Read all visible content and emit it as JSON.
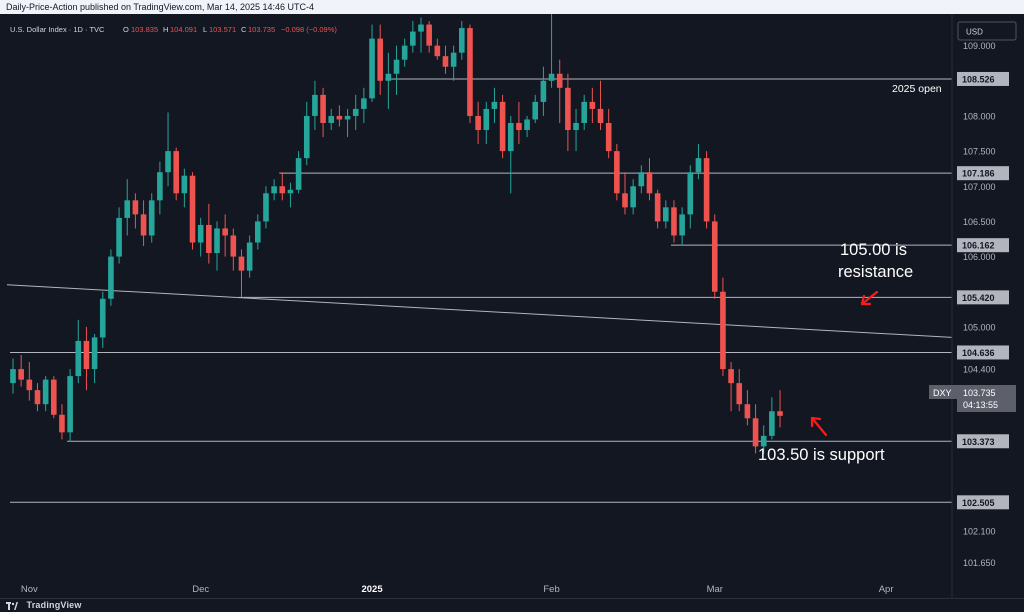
{
  "header": {
    "publish_line": "Daily-Price-Action published on TradingView.com, Mar 14, 2025 14:46 UTC-4"
  },
  "legend": {
    "symbol": "U.S. Dollar Index · 1D · TVC",
    "open_label": "O",
    "open": "103.835",
    "high_label": "H",
    "high": "104.091",
    "low_label": "L",
    "low": "103.571",
    "close_label": "C",
    "close": "103.735",
    "change": "−0.098 (−0.09%)"
  },
  "currency_badge": "USD",
  "footer": {
    "brand": "TradingView"
  },
  "chart_data": {
    "type": "candlestick",
    "symbol": "DXY",
    "timeframe": "1D",
    "y_range": [
      101.4,
      109.45
    ],
    "x_tick_labels": [
      {
        "label": "Nov",
        "bar": 2
      },
      {
        "label": "Dec",
        "bar": 23
      },
      {
        "label": "2025",
        "bar": 44
      },
      {
        "label": "Feb",
        "bar": 66
      },
      {
        "label": "Mar",
        "bar": 86
      },
      {
        "label": "Apr",
        "bar": 107
      }
    ],
    "y_tick_labels": [
      "109.000",
      "108.500",
      "108.000",
      "107.500",
      "107.000",
      "106.500",
      "106.000",
      "105.000",
      "104.400",
      "102.100",
      "101.650"
    ],
    "candles": [
      [
        104.2,
        104.55,
        104.05,
        104.4
      ],
      [
        104.4,
        104.6,
        104.15,
        104.25
      ],
      [
        104.25,
        104.5,
        103.95,
        104.1
      ],
      [
        104.1,
        104.2,
        103.8,
        103.9
      ],
      [
        103.9,
        104.3,
        103.8,
        104.25
      ],
      [
        104.25,
        104.3,
        103.7,
        103.75
      ],
      [
        103.75,
        103.9,
        103.4,
        103.5
      ],
      [
        103.5,
        104.4,
        103.37,
        104.3
      ],
      [
        104.3,
        105.1,
        104.2,
        104.8
      ],
      [
        104.8,
        105.0,
        104.1,
        104.4
      ],
      [
        104.4,
        104.9,
        104.2,
        104.85
      ],
      [
        104.85,
        105.5,
        104.7,
        105.4
      ],
      [
        105.4,
        106.1,
        105.3,
        106.0
      ],
      [
        106.0,
        106.7,
        105.9,
        106.55
      ],
      [
        106.55,
        107.1,
        106.3,
        106.8
      ],
      [
        106.8,
        106.9,
        106.4,
        106.6
      ],
      [
        106.6,
        106.8,
        106.15,
        106.3
      ],
      [
        106.3,
        106.9,
        106.2,
        106.8
      ],
      [
        106.8,
        107.35,
        106.6,
        107.2
      ],
      [
        107.2,
        108.05,
        107.0,
        107.5
      ],
      [
        107.5,
        107.55,
        106.8,
        106.9
      ],
      [
        106.9,
        107.25,
        106.7,
        107.15
      ],
      [
        107.15,
        107.2,
        106.1,
        106.2
      ],
      [
        106.2,
        106.55,
        106.0,
        106.45
      ],
      [
        106.45,
        106.75,
        105.9,
        106.05
      ],
      [
        106.05,
        106.5,
        105.8,
        106.4
      ],
      [
        106.4,
        106.6,
        106.0,
        106.3
      ],
      [
        106.3,
        106.4,
        105.8,
        106.0
      ],
      [
        106.0,
        106.1,
        105.42,
        105.8
      ],
      [
        105.8,
        106.3,
        105.7,
        106.2
      ],
      [
        106.2,
        106.6,
        106.1,
        106.5
      ],
      [
        106.5,
        107.0,
        106.4,
        106.9
      ],
      [
        106.9,
        107.1,
        106.8,
        107.0
      ],
      [
        107.0,
        107.2,
        106.8,
        106.9
      ],
      [
        106.9,
        107.05,
        106.7,
        106.95
      ],
      [
        106.95,
        107.5,
        106.9,
        107.4
      ],
      [
        107.4,
        108.2,
        107.3,
        108.0
      ],
      [
        108.0,
        108.5,
        107.8,
        108.3
      ],
      [
        108.3,
        108.4,
        107.7,
        107.9
      ],
      [
        107.9,
        108.1,
        107.8,
        108.0
      ],
      [
        108.0,
        108.15,
        107.85,
        107.95
      ],
      [
        107.95,
        108.1,
        107.7,
        108.0
      ],
      [
        108.0,
        108.3,
        107.8,
        108.1
      ],
      [
        108.1,
        108.4,
        107.9,
        108.25
      ],
      [
        108.25,
        109.3,
        108.2,
        109.1
      ],
      [
        109.1,
        109.3,
        108.3,
        108.5
      ],
      [
        108.5,
        108.9,
        108.1,
        108.6
      ],
      [
        108.6,
        109.0,
        108.3,
        108.8
      ],
      [
        108.8,
        109.1,
        108.7,
        109.0
      ],
      [
        109.0,
        109.35,
        108.9,
        109.2
      ],
      [
        109.2,
        109.4,
        108.9,
        109.3
      ],
      [
        109.3,
        109.35,
        108.9,
        109.0
      ],
      [
        109.0,
        109.1,
        108.8,
        108.85
      ],
      [
        108.85,
        109.0,
        108.6,
        108.7
      ],
      [
        108.7,
        109.0,
        108.5,
        108.9
      ],
      [
        108.9,
        109.35,
        108.8,
        109.25
      ],
      [
        109.25,
        109.3,
        107.9,
        108.0
      ],
      [
        108.0,
        108.2,
        107.6,
        107.8
      ],
      [
        107.8,
        108.2,
        107.6,
        108.1
      ],
      [
        108.1,
        108.4,
        107.9,
        108.2
      ],
      [
        108.2,
        108.3,
        107.4,
        107.5
      ],
      [
        107.5,
        108.0,
        106.9,
        107.9
      ],
      [
        107.9,
        108.2,
        107.6,
        107.8
      ],
      [
        107.8,
        108.0,
        107.7,
        107.95
      ],
      [
        107.95,
        108.3,
        107.9,
        108.2
      ],
      [
        108.2,
        108.7,
        108.0,
        108.5
      ],
      [
        108.5,
        109.5,
        108.4,
        108.6
      ],
      [
        108.6,
        108.8,
        107.9,
        108.4
      ],
      [
        108.4,
        108.6,
        107.5,
        107.8
      ],
      [
        107.8,
        108.1,
        107.5,
        107.9
      ],
      [
        107.9,
        108.3,
        107.8,
        108.2
      ],
      [
        108.2,
        108.4,
        107.9,
        108.1
      ],
      [
        108.1,
        108.5,
        107.8,
        107.9
      ],
      [
        107.9,
        108.1,
        107.4,
        107.5
      ],
      [
        107.5,
        107.6,
        106.8,
        106.9
      ],
      [
        106.9,
        107.2,
        106.6,
        106.7
      ],
      [
        106.7,
        107.1,
        106.6,
        107.0
      ],
      [
        107.0,
        107.3,
        106.9,
        107.2
      ],
      [
        107.2,
        107.4,
        106.8,
        106.9
      ],
      [
        106.9,
        106.95,
        106.4,
        106.5
      ],
      [
        106.5,
        106.8,
        106.4,
        106.7
      ],
      [
        106.7,
        106.8,
        106.2,
        106.3
      ],
      [
        106.3,
        106.7,
        106.16,
        106.6
      ],
      [
        106.6,
        107.3,
        106.4,
        107.2
      ],
      [
        107.2,
        107.6,
        107.1,
        107.4
      ],
      [
        107.4,
        107.5,
        106.4,
        106.5
      ],
      [
        106.5,
        106.6,
        105.4,
        105.5
      ],
      [
        105.5,
        105.7,
        104.3,
        104.4
      ],
      [
        104.4,
        104.5,
        103.8,
        104.2
      ],
      [
        104.2,
        104.4,
        103.8,
        103.9
      ],
      [
        103.9,
        104.1,
        103.6,
        103.7
      ],
      [
        103.7,
        103.9,
        103.2,
        103.3
      ],
      [
        103.3,
        103.6,
        103.2,
        103.45
      ],
      [
        103.45,
        104.0,
        103.4,
        103.8
      ],
      [
        103.8,
        104.1,
        103.57,
        103.735
      ]
    ],
    "horizontal_levels": [
      {
        "value": 108.526,
        "label": "108.526",
        "start_bar": 46
      },
      {
        "value": 107.186,
        "label": "107.186",
        "start_bar": 33
      },
      {
        "value": 106.162,
        "label": "106.162",
        "start_bar": 81
      },
      {
        "value": 105.42,
        "label": "105.420",
        "start_bar": 28
      },
      {
        "value": 104.636,
        "label": "104.636",
        "start_bar": 0
      },
      {
        "value": 103.373,
        "label": "103.373",
        "start_bar": 7
      },
      {
        "value": 102.505,
        "label": "102.505",
        "start_bar": 0
      }
    ],
    "trendline": {
      "from": {
        "bar": 0,
        "value": 105.6
      },
      "to": {
        "bar": 109,
        "value": 104.85
      }
    },
    "current_price": {
      "symbol_tag": "DXY",
      "value": "103.735",
      "countdown": "04:13:55"
    },
    "annotations": [
      {
        "text": "2025 open"
      },
      {
        "text_line1": "105.00 is",
        "text_line2": "resistance"
      },
      {
        "text": "103.50 is support"
      }
    ],
    "colors": {
      "up": "#26a69a",
      "down": "#ef5350",
      "level": "#b2b5be",
      "annotation_arrow": "#ff1a1a"
    }
  }
}
